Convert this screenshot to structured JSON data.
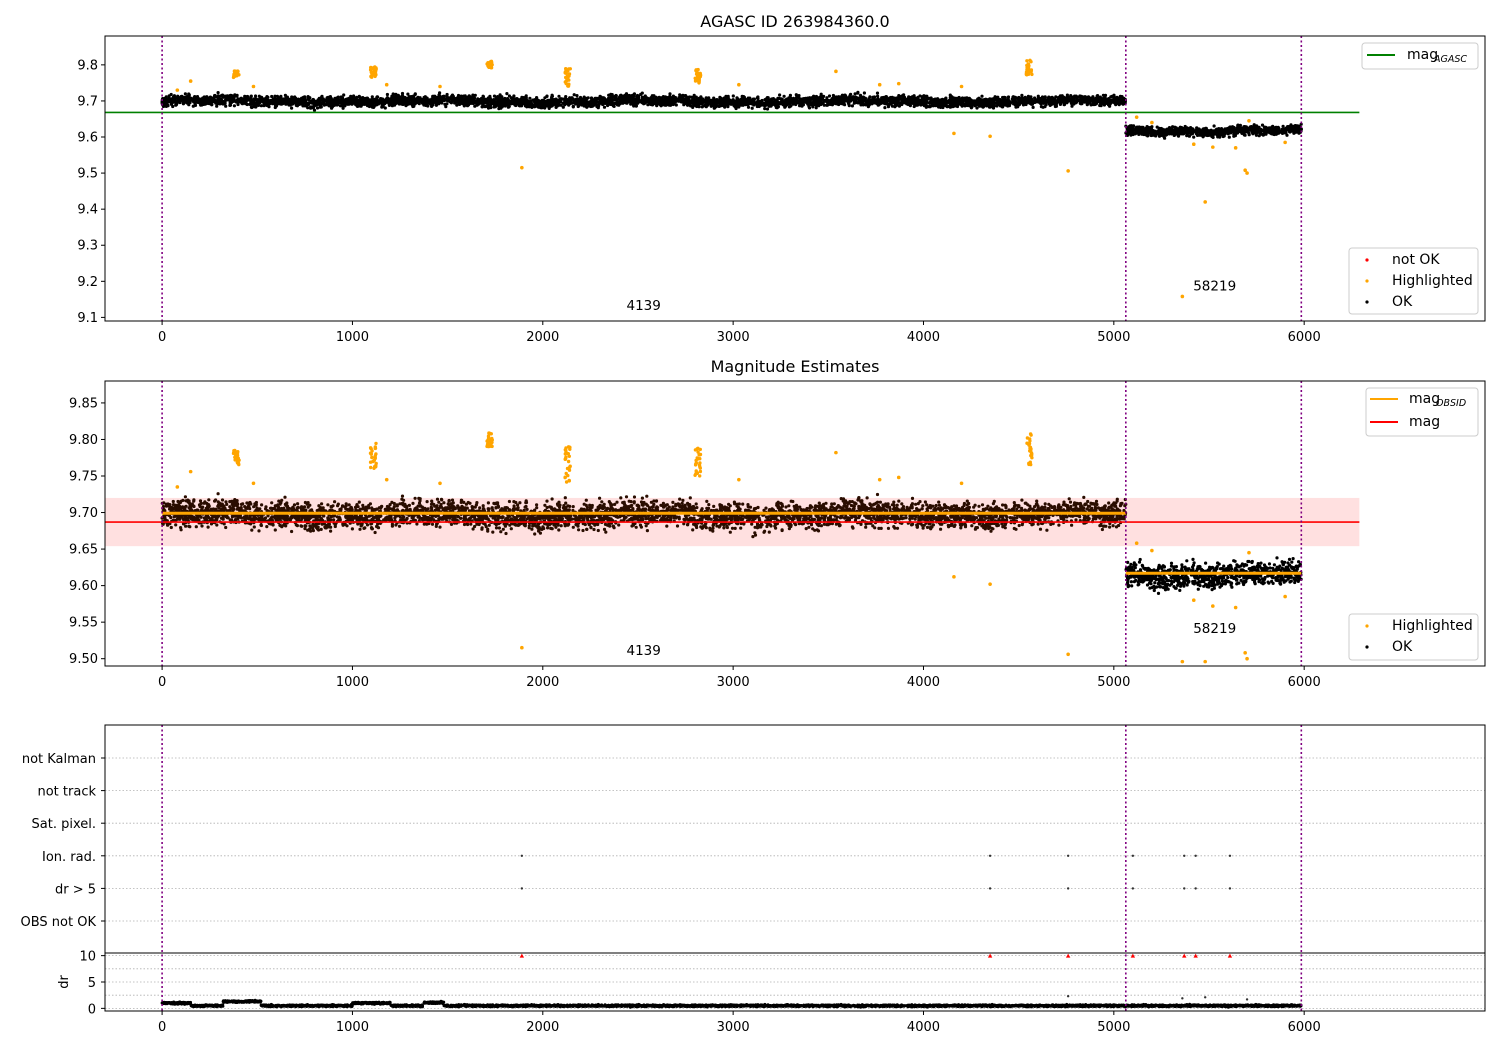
{
  "chart_data": [
    {
      "type": "scatter",
      "title": "AGASC ID 263984360.0",
      "xlim": [
        -300,
        6950
      ],
      "ylim": [
        9.09,
        9.88
      ],
      "xticks": [
        0,
        1000,
        2000,
        3000,
        4000,
        5000,
        6000
      ],
      "yticks": [
        9.1,
        9.2,
        9.3,
        9.4,
        9.5,
        9.6,
        9.7,
        9.8
      ],
      "ytick_decimals": 1,
      "grid": false,
      "legend_upper": {
        "position": "top-right",
        "entries": [
          {
            "label": "mag",
            "subscript": "AGASC",
            "kind": "line",
            "color": "#008000"
          }
        ]
      },
      "legend_lower": {
        "position": "bottom-right",
        "entries": [
          {
            "label": "not OK",
            "kind": "dot",
            "color": "#ff0000"
          },
          {
            "label": "Highlighted",
            "kind": "dot",
            "color": "#ffa500"
          },
          {
            "label": "OK",
            "kind": "dot",
            "color": "#000000"
          }
        ]
      },
      "vlines": [
        0,
        5063,
        5985
      ],
      "hlines": [
        {
          "y": 9.668,
          "x0": -300,
          "x1": 6290,
          "color": "#008000"
        }
      ],
      "obs_segments": [
        {
          "x0": 0,
          "x1": 5063,
          "center": 9.699,
          "spread": 0.009,
          "color": "#000000"
        },
        {
          "x0": 5063,
          "x1": 5985,
          "center": 9.617,
          "spread": 0.008,
          "color": "#000000"
        }
      ],
      "highlight_clusters": [
        {
          "x": 390,
          "y0": 9.765,
          "y1": 9.785
        },
        {
          "x": 1110,
          "y0": 9.765,
          "y1": 9.795
        },
        {
          "x": 1720,
          "y0": 9.79,
          "y1": 9.81
        },
        {
          "x": 2130,
          "y0": 9.74,
          "y1": 9.79
        },
        {
          "x": 2815,
          "y0": 9.75,
          "y1": 9.79
        },
        {
          "x": 4555,
          "y0": 9.77,
          "y1": 9.815
        }
      ],
      "highlight_points": [
        {
          "x": 80,
          "y": 9.73
        },
        {
          "x": 150,
          "y": 9.755
        },
        {
          "x": 480,
          "y": 9.74
        },
        {
          "x": 1180,
          "y": 9.745
        },
        {
          "x": 1460,
          "y": 9.74
        },
        {
          "x": 1890,
          "y": 9.515
        },
        {
          "x": 3030,
          "y": 9.745
        },
        {
          "x": 3540,
          "y": 9.782
        },
        {
          "x": 3770,
          "y": 9.745
        },
        {
          "x": 3870,
          "y": 9.748
        },
        {
          "x": 4160,
          "y": 9.61
        },
        {
          "x": 4200,
          "y": 9.74
        },
        {
          "x": 4350,
          "y": 9.602
        },
        {
          "x": 4760,
          "y": 9.506
        },
        {
          "x": 5120,
          "y": 9.655
        },
        {
          "x": 5200,
          "y": 9.64
        },
        {
          "x": 5360,
          "y": 9.158
        },
        {
          "x": 5420,
          "y": 9.58
        },
        {
          "x": 5480,
          "y": 9.42
        },
        {
          "x": 5520,
          "y": 9.572
        },
        {
          "x": 5640,
          "y": 9.57
        },
        {
          "x": 5690,
          "y": 9.508
        },
        {
          "x": 5700,
          "y": 9.5
        },
        {
          "x": 5710,
          "y": 9.645
        },
        {
          "x": 5900,
          "y": 9.585
        }
      ],
      "annotations": [
        {
          "text": "4139",
          "x": 2530,
          "y": 9.12
        },
        {
          "text": "58219",
          "x": 5530,
          "y": 9.175
        }
      ]
    },
    {
      "type": "scatter",
      "title": "Magnitude Estimates",
      "xlim": [
        -300,
        6950
      ],
      "ylim": [
        9.49,
        9.88
      ],
      "xticks": [
        0,
        1000,
        2000,
        3000,
        4000,
        5000,
        6000
      ],
      "yticks": [
        9.5,
        9.55,
        9.6,
        9.65,
        9.7,
        9.75,
        9.8,
        9.85
      ],
      "ytick_decimals": 2,
      "grid": false,
      "legend_upper": {
        "position": "top-right",
        "entries": [
          {
            "label": "mag",
            "subscript": "OBSID",
            "kind": "line",
            "color": "#ffa500"
          },
          {
            "label": "mag",
            "kind": "line",
            "color": "#ff0000"
          }
        ]
      },
      "legend_lower": {
        "position": "bottom-right",
        "entries": [
          {
            "label": "Highlighted",
            "kind": "dot",
            "color": "#ffa500"
          },
          {
            "label": "OK",
            "kind": "dot",
            "color": "#000000"
          }
        ]
      },
      "vlines": [
        0,
        5063,
        5985
      ],
      "band": {
        "y0": 9.654,
        "y1": 9.72,
        "x0": -300,
        "x1": 6290,
        "color": "#ff0000",
        "opacity": 0.12
      },
      "hlines": [
        {
          "y": 9.687,
          "x0": -300,
          "x1": 6290,
          "color": "#ff0000"
        }
      ],
      "obs_mag_lines": [
        {
          "x0": 0,
          "x1": 5063,
          "y": 9.699
        },
        {
          "x0": 5063,
          "x1": 5985,
          "y": 9.617
        }
      ],
      "obs_segments": [
        {
          "x0": 0,
          "x1": 5063,
          "center": 9.697,
          "spread": 0.011,
          "color": "#2a0d00"
        },
        {
          "x0": 5063,
          "x1": 5985,
          "center": 9.615,
          "spread": 0.01,
          "color": "#000000"
        }
      ],
      "highlight_clusters": [
        {
          "x": 390,
          "y0": 9.765,
          "y1": 9.785
        },
        {
          "x": 1110,
          "y0": 9.76,
          "y1": 9.795
        },
        {
          "x": 1720,
          "y0": 9.79,
          "y1": 9.81
        },
        {
          "x": 2130,
          "y0": 9.74,
          "y1": 9.79
        },
        {
          "x": 2815,
          "y0": 9.75,
          "y1": 9.79
        },
        {
          "x": 4555,
          "y0": 9.765,
          "y1": 9.815
        }
      ],
      "highlight_points": [
        {
          "x": 80,
          "y": 9.735
        },
        {
          "x": 150,
          "y": 9.756
        },
        {
          "x": 480,
          "y": 9.74
        },
        {
          "x": 1180,
          "y": 9.745
        },
        {
          "x": 1460,
          "y": 9.74
        },
        {
          "x": 1890,
          "y": 9.515
        },
        {
          "x": 3030,
          "y": 9.745
        },
        {
          "x": 3540,
          "y": 9.782
        },
        {
          "x": 3770,
          "y": 9.745
        },
        {
          "x": 3870,
          "y": 9.748
        },
        {
          "x": 4160,
          "y": 9.612
        },
        {
          "x": 4200,
          "y": 9.74
        },
        {
          "x": 4350,
          "y": 9.602
        },
        {
          "x": 4760,
          "y": 9.506
        },
        {
          "x": 5120,
          "y": 9.658
        },
        {
          "x": 5200,
          "y": 9.648
        },
        {
          "x": 5360,
          "y": 9.496
        },
        {
          "x": 5420,
          "y": 9.58
        },
        {
          "x": 5480,
          "y": 9.496
        },
        {
          "x": 5520,
          "y": 9.572
        },
        {
          "x": 5640,
          "y": 9.57
        },
        {
          "x": 5690,
          "y": 9.508
        },
        {
          "x": 5700,
          "y": 9.5
        },
        {
          "x": 5710,
          "y": 9.645
        },
        {
          "x": 5900,
          "y": 9.585
        }
      ],
      "annotations": [
        {
          "text": "4139",
          "x": 2530,
          "y": 9.505
        },
        {
          "text": "58219",
          "x": 5530,
          "y": 9.535
        }
      ]
    },
    {
      "type": "scatter",
      "title": "",
      "xlim": [
        -300,
        6950
      ],
      "xticks": [
        0,
        1000,
        2000,
        3000,
        4000,
        5000,
        6000
      ],
      "vlines": [
        0,
        5063,
        5985
      ],
      "flag_labels": [
        "not Kalman",
        "not track",
        "Sat. pixel.",
        "Ion. rad.",
        "dr > 5",
        "OBS not OK"
      ],
      "flag_points": [
        {
          "flag": "Ion. rad.",
          "x": [
            1890,
            4350,
            4760,
            5100,
            5370,
            5430,
            5610
          ]
        },
        {
          "flag": "dr > 5",
          "x": [
            1890,
            4350,
            4760,
            5100,
            5370,
            5430,
            5610
          ]
        }
      ],
      "dr_panel": {
        "ylabel": "dr",
        "ylim": [
          -0.5,
          10.5
        ],
        "yticks": [
          0,
          5,
          10
        ],
        "gridlines": [
          0,
          2.5,
          5,
          7.5,
          10
        ],
        "baseline": 0.5,
        "outliers": [
          {
            "x": 4760,
            "y": 2.3
          },
          {
            "x": 5360,
            "y": 1.9
          },
          {
            "x": 5480,
            "y": 2.1
          },
          {
            "x": 5700,
            "y": 1.7
          }
        ],
        "markers_at_top": {
          "y": 10,
          "color": "#ff0000",
          "x": [
            1890,
            4350,
            4760,
            5100,
            5370,
            5430,
            5610
          ]
        }
      }
    }
  ]
}
